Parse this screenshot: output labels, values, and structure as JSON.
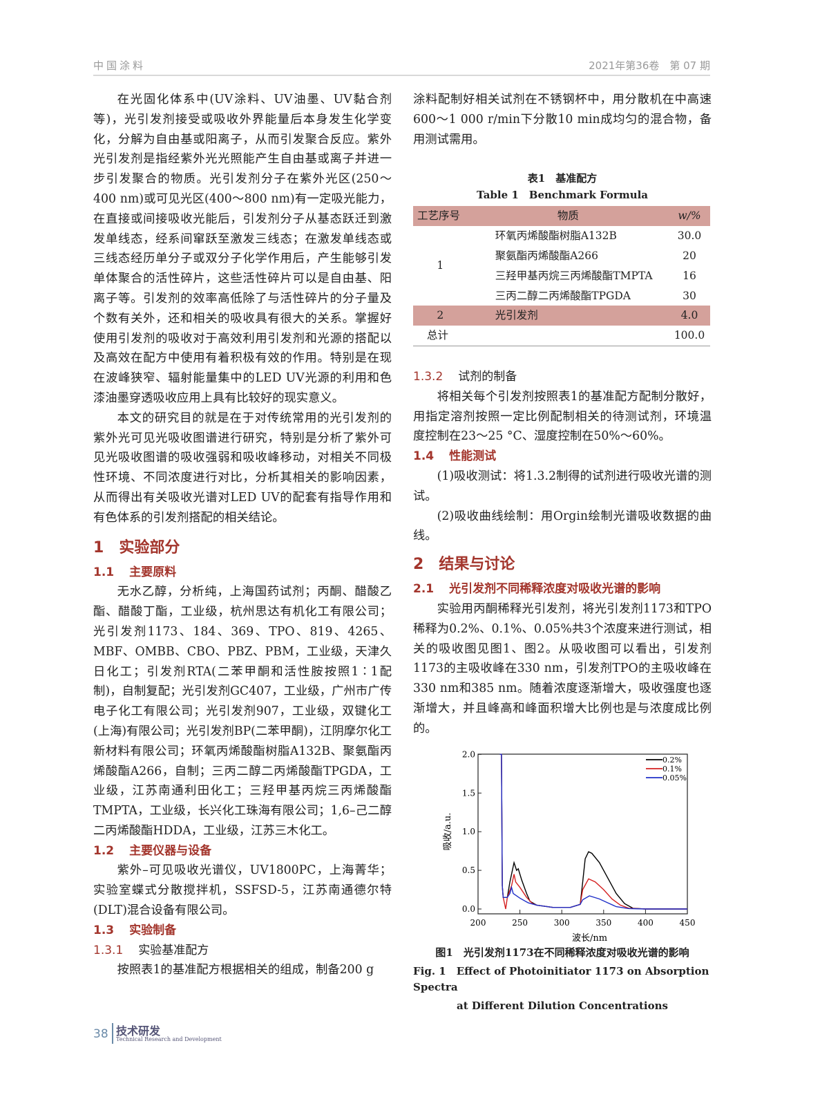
{
  "header": {
    "journal": "中国涂料",
    "issue": "2021年第36卷　第 07 期"
  },
  "left": {
    "p1": "在光固化体系中(UV涂料、UV油墨、UV黏合剂等)，光引发剂接受或吸收外界能量后本身发生化学变化，分解为自由基或阳离子，从而引发聚合反应。紫外光引发剂是指经紫外光光照能产生自由基或离子并进一步引发聚合的物质。光引发剂分子在紫外光区(250～400 nm)或可见光区(400～800 nm)有一定吸光能力，在直接或间接吸收光能后，引发剂分子从基态跃迁到激发单线态，经系间窜跃至激发三线态；在激发单线态或三线态经历单分子或双分子化学作用后，产生能够引发单体聚合的活性碎片，这些活性碎片可以是自由基、阳离子等。引发剂的效率高低除了与活性碎片的分子量及个数有关外，还和相关的吸收具有很大的关系。掌握好使用引发剂的吸收对于高效利用引发剂和光源的搭配以及高效在配方中使用有着积极有效的作用。特别是在现在波峰狭窄、辐射能量集中的LED UV光源的利用和色漆油墨穿透吸收应用上具有比较好的现实意义。",
    "p2": "本文的研究目的就是在于对传统常用的光引发剂的紫外光可见光吸收图谱进行研究，特别是分析了紫外可见光吸收图谱的吸收强弱和吸收峰移动，对相关不同极性环境、不同浓度进行对比，分析其相关的影响因素，从而得出有关吸收光谱对LED UV的配套有指导作用和有色体系的引发剂搭配的相关结论。",
    "s1_num": "1",
    "s1_title": "实验部分",
    "s11_num": "1.1",
    "s11_title": "主要原料",
    "p3": "无水乙醇，分析纯，上海国药试剂；丙酮、醋酸乙酯、醋酸丁酯，工业级，杭州思达有机化工有限公司；光引发剂1173、184、369、TPO、819、4265、MBF、OMBB、CBO、PBZ、PBM，工业级，天津久日化工；引发剂RTA(二苯甲酮和活性胺按照1∶1配制)，自制复配；光引发剂GC407，工业级，广州市广传电子化工有限公司；光引发剂907，工业级，双键化工(上海)有限公司；光引发剂BP(二苯甲酮)，江阴摩尔化工新材料有限公司；环氧丙烯酸酯树脂A132B、聚氨酯丙烯酸酯A266，自制；三丙二醇二丙烯酸酯TPGDA，工业级，江苏南通利田化工；三羟甲基丙烷三丙烯酸酯TMPTA，工业级，长兴化工珠海有限公司；1,6–己二醇二丙烯酸酯HDDA，工业级，江苏三木化工。",
    "s12_num": "1.2",
    "s12_title": "主要仪器与设备",
    "p4": "紫外–可见吸收光谱仪，UV1800PC，上海菁华；实验室蝶式分散搅拌机，SSFSD-5，江苏南通德尔特(DLT)混合设备有限公司。",
    "s13_num": "1.3",
    "s13_title": "实验制备",
    "s131_num": "1.3.1",
    "s131_title": "实验基准配方",
    "p5": "按照表1的基准配方根据相关的组成，制备200 g"
  },
  "right": {
    "p1": "涂料配制好相关试剂在不锈钢杯中，用分散机在中高速600～1 000 r/min下分散10 min成均匀的混合物，备用测试需用。",
    "table": {
      "caption_cn": "表1　基准配方",
      "caption_en": "Table 1　Benchmark Formula",
      "headers": [
        "工艺序号",
        "物质",
        "w/%"
      ],
      "group1_id": "1",
      "group1_rows": [
        {
          "substance": "环氧丙烯酸酯树脂A132B",
          "w": "30.0"
        },
        {
          "substance": "聚氨酯丙烯酸酯A266",
          "w": "20"
        },
        {
          "substance": "三羟甲基丙烷三丙烯酸酯TMPTA",
          "w": "16"
        },
        {
          "substance": "三丙二醇二丙烯酸酯TPGDA",
          "w": "30"
        }
      ],
      "group2": {
        "id": "2",
        "substance": "光引发剂",
        "w": "4.0"
      },
      "total": {
        "label": "总计",
        "w": "100.0"
      }
    },
    "s132_num": "1.3.2",
    "s132_title": "试剂的制备",
    "p2": "将相关每个引发剂按照表1的基准配方配制分散好，用指定溶剂按照一定比例配制相关的待测试剂，环境温度控制在23～25 °C、湿度控制在50%～60%。",
    "s14_num": "1.4",
    "s14_title": "性能测试",
    "p3": "(1)吸收测试：将1.3.2制得的试剂进行吸收光谱的测试。",
    "p4": "(2)吸收曲线绘制：用Orgin绘制光谱吸收数据的曲线。",
    "s2_num": "2",
    "s2_title": "结果与讨论",
    "s21_num": "2.1",
    "s21_title": "光引发剂不同稀释浓度对吸收光谱的影响",
    "p5": "实验用丙酮稀释光引发剂，将光引发剂1173和TPO稀释为0.2%、0.1%、0.05%共3个浓度来进行测试，相关的吸收图见图1、图2。从吸收图可以看出，引发剂1173的主吸收峰在330 nm，引发剂TPO的主吸收峰在330 nm和385 nm。随着浓度逐渐增大，吸收强度也逐渐增大，并且峰高和峰面积增大比例也是与浓度成比例的。",
    "fig_cn": "图1　光引发剂1173在不同稀释浓度对吸收光谱的影响",
    "fig_en1": "Fig. 1　Effect of Photoinitiator 1173 on Absorption Spectra",
    "fig_en2": "at Different Dilution Concentrations"
  },
  "chart_data": {
    "type": "line",
    "xlabel": "波长/nm",
    "ylabel": "吸收/a.u.",
    "xlim": [
      200,
      450
    ],
    "ylim": [
      0,
      2.0
    ],
    "xticks": [
      "200",
      "250",
      "300",
      "350",
      "400",
      "450"
    ],
    "yticks": [
      "0.0",
      "0.5",
      "1.0",
      "1.5",
      "2.0"
    ],
    "legend_position": "top-right",
    "grid": false,
    "series": [
      {
        "name": "0.2%",
        "color": "#000000",
        "x": [
          226,
          228,
          229,
          230,
          235,
          238,
          243,
          246,
          248,
          252,
          258,
          262,
          270,
          290,
          310,
          322,
          325,
          328,
          332,
          336,
          345,
          355,
          365,
          375,
          385,
          400,
          450
        ],
        "y": [
          2.0,
          2.0,
          0.3,
          0.15,
          0.15,
          0.35,
          0.6,
          0.5,
          0.52,
          0.38,
          0.2,
          0.1,
          0.05,
          0.02,
          0.02,
          0.06,
          0.35,
          0.65,
          0.74,
          0.72,
          0.6,
          0.4,
          0.2,
          0.07,
          0.01,
          0,
          0
        ]
      },
      {
        "name": "0.1%",
        "color": "#d42020",
        "x": [
          226,
          228,
          229,
          230,
          232,
          233,
          235,
          240,
          243,
          245,
          250,
          258,
          265,
          270,
          290,
          310,
          322,
          325,
          332,
          340,
          350,
          360,
          370,
          380,
          400,
          450
        ],
        "y": [
          2.0,
          2.0,
          0.3,
          0.15,
          0.05,
          0,
          0.15,
          0.3,
          0.45,
          0.35,
          0.28,
          0.15,
          0.07,
          0.05,
          0.02,
          0.02,
          0.06,
          0.25,
          0.39,
          0.35,
          0.25,
          0.13,
          0.05,
          0.01,
          0,
          0
        ]
      },
      {
        "name": "0.05%",
        "color": "#1f2fc8",
        "x": [
          226,
          228,
          229,
          230,
          235,
          238,
          240,
          242,
          250,
          260,
          270,
          290,
          310,
          322,
          325,
          333,
          345,
          355,
          365,
          380,
          400,
          450
        ],
        "y": [
          2.0,
          2.0,
          0.3,
          0.15,
          0.15,
          0.2,
          0.28,
          0.2,
          0.14,
          0.08,
          0.05,
          0.02,
          0.02,
          0.06,
          0.12,
          0.17,
          0.13,
          0.08,
          0.03,
          0.005,
          0,
          0
        ]
      }
    ]
  },
  "footer": {
    "page": "38",
    "section_cn": "技术研发",
    "section_en": "Technical Research and Development"
  }
}
